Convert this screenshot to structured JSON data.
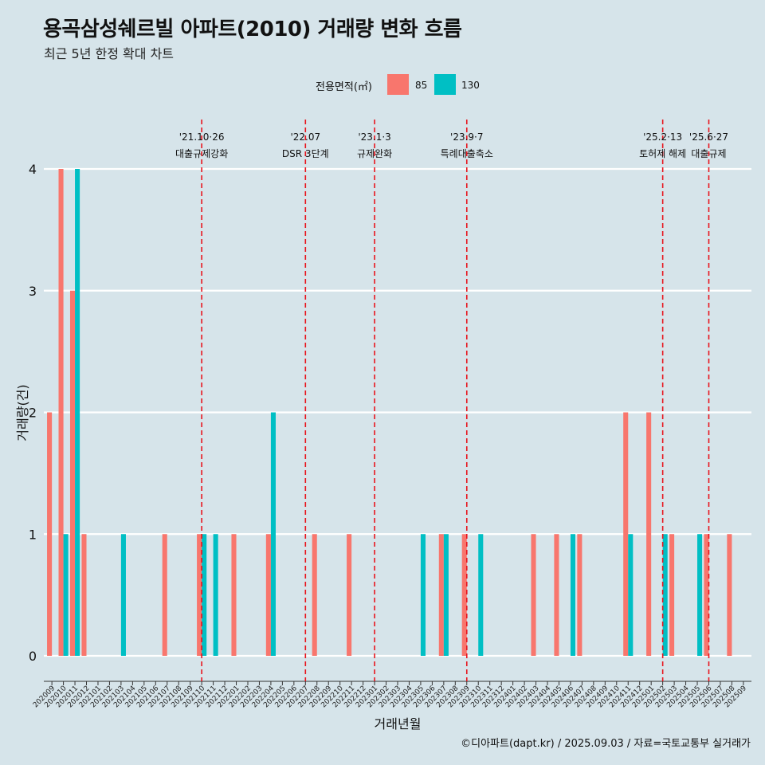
{
  "title": "용곡삼성쉐르빌 아파트(2010) 거래량 변화 흐름",
  "subtitle": "최근 5년 한정 확대 차트",
  "caption": "©디아파트(dapt.kr) / 2025.09.03 / 자료=국토교통부 실거래가",
  "legend": {
    "title": "전용면적(㎡)",
    "items": [
      {
        "label": "85",
        "color": "#f8766d"
      },
      {
        "label": "130",
        "color": "#00bfc4"
      }
    ]
  },
  "chart_data": {
    "type": "bar",
    "xlabel": "거래년월",
    "ylabel": "거래량(건)",
    "ylim": [
      0,
      4
    ],
    "yticks": [
      0,
      1,
      2,
      3,
      4
    ],
    "grid": true,
    "legend_position": "top",
    "categories": [
      "202009",
      "202010",
      "202011",
      "202012",
      "202101",
      "202102",
      "202103",
      "202104",
      "202105",
      "202106",
      "202107",
      "202108",
      "202109",
      "202110",
      "202111",
      "202112",
      "202201",
      "202202",
      "202203",
      "202204",
      "202205",
      "202206",
      "202207",
      "202208",
      "202209",
      "202210",
      "202211",
      "202212",
      "202301",
      "202302",
      "202303",
      "202304",
      "202305",
      "202306",
      "202307",
      "202308",
      "202309",
      "202310",
      "202311",
      "202312",
      "202401",
      "202402",
      "202403",
      "202404",
      "202405",
      "202406",
      "202407",
      "202408",
      "202409",
      "202410",
      "202411",
      "202412",
      "202501",
      "202502",
      "202503",
      "202504",
      "202505",
      "202506",
      "202507",
      "202508",
      "202509"
    ],
    "series": [
      {
        "name": "85",
        "color": "#f8766d",
        "values": [
          2,
          4,
          3,
          1,
          0,
          0,
          0,
          0,
          0,
          0,
          1,
          0,
          0,
          1,
          0,
          0,
          1,
          0,
          0,
          1,
          0,
          0,
          0,
          1,
          0,
          0,
          1,
          0,
          0,
          0,
          0,
          0,
          0,
          0,
          1,
          0,
          1,
          0,
          0,
          0,
          0,
          0,
          1,
          0,
          1,
          0,
          1,
          0,
          0,
          0,
          2,
          0,
          2,
          0,
          1,
          0,
          0,
          1,
          0,
          1,
          0
        ]
      },
      {
        "name": "130",
        "color": "#00bfc4",
        "values": [
          0,
          1,
          4,
          0,
          0,
          0,
          1,
          0,
          0,
          0,
          0,
          0,
          0,
          1,
          1,
          0,
          0,
          0,
          0,
          2,
          0,
          0,
          0,
          0,
          0,
          0,
          0,
          0,
          0,
          0,
          0,
          0,
          1,
          0,
          1,
          0,
          0,
          1,
          0,
          0,
          0,
          0,
          0,
          0,
          0,
          1,
          0,
          0,
          0,
          0,
          1,
          0,
          0,
          1,
          0,
          0,
          1,
          0,
          0,
          0,
          0
        ]
      }
    ],
    "annotations": [
      {
        "month": "202110",
        "date": "'21.10·26",
        "label": "대출규제강화"
      },
      {
        "month": "202207",
        "date": "'22.07",
        "label": "DSR 3단계"
      },
      {
        "month": "202301",
        "date": "'23.1·3",
        "label": "규제완화"
      },
      {
        "month": "202309",
        "date": "'23.9·7",
        "label": "특례대출축소"
      },
      {
        "month": "202502",
        "date": "'25.2·13",
        "label": "토허제 해제"
      },
      {
        "month": "202506",
        "date": "'25.6·27",
        "label": "대출규제"
      }
    ]
  }
}
